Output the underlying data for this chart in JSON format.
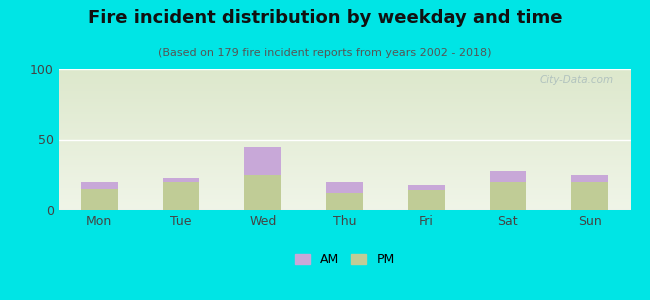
{
  "title": "Fire incident distribution by weekday and time",
  "subtitle": "(Based on 179 fire incident reports from years 2002 - 2018)",
  "categories": [
    "Mon",
    "Tue",
    "Wed",
    "Thu",
    "Fri",
    "Sat",
    "Sun"
  ],
  "pm_values": [
    15,
    20,
    25,
    12,
    14,
    20,
    20
  ],
  "am_values": [
    5,
    3,
    20,
    8,
    4,
    8,
    5
  ],
  "am_color": "#c8a8d8",
  "pm_color": "#c0cc96",
  "ylim": [
    0,
    100
  ],
  "yticks": [
    0,
    50,
    100
  ],
  "background_color": "#00e5e5",
  "plot_bg_top": "#dde8cc",
  "plot_bg_bottom": "#f0f5e8",
  "watermark": "City-Data.com",
  "bar_width": 0.45,
  "title_fontsize": 13,
  "subtitle_fontsize": 8,
  "tick_fontsize": 9,
  "legend_fontsize": 9
}
